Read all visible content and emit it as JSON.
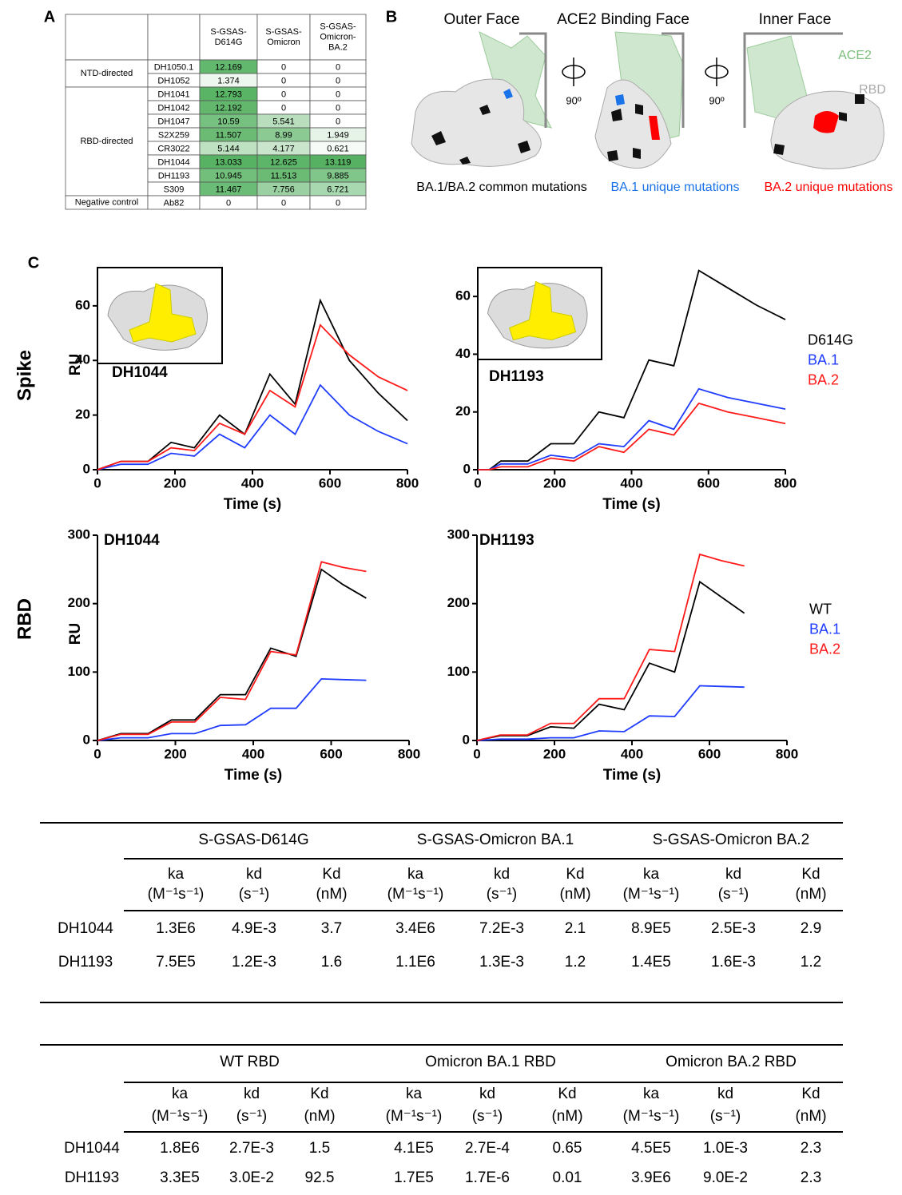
{
  "panel_labels": [
    "A",
    "B",
    "C"
  ],
  "table_a": {
    "columns": [
      [
        "S-GSAS-",
        "D614G"
      ],
      [
        "S-GSAS-",
        "Omicron"
      ],
      [
        "S-GSAS-",
        "Omicron-",
        "BA.2"
      ]
    ],
    "groups": [
      {
        "label": "NTD-directed",
        "rows": [
          {
            "antibody": "DH1050.1",
            "values": [
              12.169,
              0,
              0
            ]
          },
          {
            "antibody": "DH1052",
            "values": [
              1.374,
              0,
              0
            ]
          }
        ]
      },
      {
        "label": "RBD-directed",
        "rows": [
          {
            "antibody": "DH1041",
            "values": [
              12.793,
              0,
              0
            ]
          },
          {
            "antibody": "DH1042",
            "values": [
              12.192,
              0,
              0
            ]
          },
          {
            "antibody": "DH1047",
            "values": [
              10.59,
              5.541,
              0
            ]
          },
          {
            "antibody": "S2X259",
            "values": [
              11.507,
              8.99,
              1.949
            ]
          },
          {
            "antibody": "CR3022",
            "values": [
              5.144,
              4.177,
              0.621
            ]
          },
          {
            "antibody": "DH1044",
            "values": [
              13.033,
              12.625,
              13.119
            ]
          },
          {
            "antibody": "DH1193",
            "values": [
              10.945,
              11.513,
              9.885
            ]
          },
          {
            "antibody": "S309",
            "values": [
              11.467,
              7.756,
              6.721
            ]
          }
        ]
      },
      {
        "label": "Negative control",
        "rows": [
          {
            "antibody": "Ab82",
            "values": [
              0,
              0,
              0
            ]
          }
        ]
      }
    ]
  },
  "structures": {
    "views": [
      "Outer Face",
      "ACE2 Binding Face",
      "Inner Face"
    ],
    "rotations": [
      "90º",
      "90º"
    ],
    "chain_labels": [
      {
        "text": "ACE2",
        "color": "#7cbf7c"
      },
      {
        "text": "RBD",
        "color": "#aaaaaa"
      }
    ],
    "legend": [
      {
        "text": "BA.1/BA.2 common mutations",
        "color": "#000000"
      },
      {
        "text": "BA.1 unique mutations",
        "color": "#1a73e8"
      },
      {
        "text": "BA.2 unique mutations",
        "color": "#ff0000"
      }
    ]
  },
  "row_labels": [
    "Spike",
    "RBD"
  ],
  "chart_data": [
    {
      "type": "line",
      "annotation": "DH1044",
      "x_label": "Time (s)",
      "y_label": "RU",
      "x": [
        0,
        60,
        130,
        190,
        250,
        315,
        380,
        445,
        510,
        575,
        650,
        725,
        800
      ],
      "xlim": [
        0,
        800
      ],
      "xticks": [
        0,
        200,
        400,
        600,
        800
      ],
      "ylim": [
        0,
        74
      ],
      "yticks": [
        0,
        20,
        40,
        60
      ],
      "series": [
        {
          "color": "#000000",
          "values": [
            0,
            3,
            3,
            10,
            8,
            20,
            13,
            35,
            24,
            62,
            40,
            28,
            18
          ]
        },
        {
          "color": "#1f3cff",
          "values": [
            0,
            2,
            2,
            6,
            5,
            13,
            8,
            20,
            13,
            31,
            20,
            14,
            9.5
          ]
        },
        {
          "color": "#ff1a1a",
          "values": [
            0,
            3,
            3,
            8,
            7,
            17,
            13,
            29,
            23,
            53,
            42,
            34,
            29
          ]
        }
      ]
    },
    {
      "type": "line",
      "annotation": "DH1193",
      "x_label": "Time (s)",
      "x": [
        0,
        30,
        60,
        130,
        190,
        250,
        315,
        380,
        445,
        510,
        575,
        650,
        725,
        800
      ],
      "xlim": [
        0,
        800
      ],
      "xticks": [
        0,
        200,
        400,
        600,
        800
      ],
      "ylim": [
        0,
        70
      ],
      "yticks": [
        0,
        20,
        40,
        60
      ],
      "series": [
        {
          "name": "D614G",
          "color": "#000000",
          "values": [
            0,
            0,
            3,
            3,
            9,
            9,
            20,
            18,
            38,
            36,
            69,
            63,
            57,
            52
          ]
        },
        {
          "name": "BA.1",
          "color": "#1f3cff",
          "values": [
            0,
            0,
            2,
            2,
            5,
            4,
            9,
            8,
            17,
            14,
            28,
            25,
            23,
            21
          ]
        },
        {
          "name": "BA.2",
          "color": "#ff1a1a",
          "values": [
            0,
            0,
            1,
            1,
            4,
            3,
            8,
            6,
            14,
            12,
            23,
            20,
            18,
            16
          ]
        }
      ]
    },
    {
      "type": "line",
      "annotation": "DH1044",
      "x_label": "Time (s)",
      "y_label": "RU",
      "x": [
        0,
        60,
        130,
        190,
        250,
        315,
        380,
        445,
        510,
        575,
        630,
        690
      ],
      "xlim": [
        0,
        800
      ],
      "xticks": [
        0,
        200,
        400,
        600,
        800
      ],
      "ylim": [
        0,
        300
      ],
      "yticks": [
        0,
        100,
        200,
        300
      ],
      "series": [
        {
          "color": "#000000",
          "values": [
            0,
            10,
            10,
            30,
            30,
            67,
            67,
            135,
            123,
            250,
            228,
            208
          ]
        },
        {
          "color": "#1f3cff",
          "values": [
            0,
            4,
            4,
            10,
            10,
            22,
            23,
            47,
            47,
            90,
            89,
            88
          ]
        },
        {
          "color": "#ff1a1a",
          "values": [
            0,
            9,
            9,
            27,
            27,
            63,
            60,
            130,
            125,
            261,
            253,
            247
          ]
        }
      ]
    },
    {
      "type": "line",
      "annotation": "DH1193",
      "x_label": "Time (s)",
      "x": [
        0,
        60,
        130,
        190,
        250,
        315,
        380,
        445,
        510,
        575,
        630,
        690
      ],
      "xlim": [
        0,
        800
      ],
      "xticks": [
        0,
        200,
        400,
        600,
        800
      ],
      "ylim": [
        0,
        300
      ],
      "yticks": [
        0,
        100,
        200,
        300
      ],
      "series": [
        {
          "name": "WT",
          "color": "#000000",
          "values": [
            0,
            7,
            7,
            20,
            18,
            53,
            45,
            113,
            100,
            232,
            210,
            186
          ]
        },
        {
          "name": "BA.1",
          "color": "#1f3cff",
          "values": [
            0,
            2,
            2,
            4,
            4,
            14,
            13,
            36,
            35,
            80,
            79,
            78
          ]
        },
        {
          "name": "BA.2",
          "color": "#ff1a1a",
          "values": [
            0,
            8,
            8,
            25,
            25,
            61,
            61,
            133,
            130,
            272,
            263,
            255
          ]
        }
      ]
    }
  ],
  "kinetics_tables": [
    {
      "groups": [
        "S-GSAS-D614G",
        "S-GSAS-Omicron BA.1",
        "S-GSAS-Omicron BA.2"
      ],
      "subheaders": [
        {
          "name": "ka",
          "unit": "(M⁻¹s⁻¹)"
        },
        {
          "name": "kd",
          "unit": "(s⁻¹)"
        },
        {
          "name": "Kd",
          "unit": "(nM)"
        }
      ],
      "rows": [
        {
          "name": "DH1044",
          "values": [
            "1.3E6",
            "4.9E-3",
            "3.7",
            "3.4E6",
            "7.2E-3",
            "2.1",
            "8.9E5",
            "2.5E-3",
            "2.9"
          ]
        },
        {
          "name": "DH1193",
          "values": [
            "7.5E5",
            "1.2E-3",
            "1.6",
            "1.1E6",
            "1.3E-3",
            "1.2",
            "1.4E5",
            "1.6E-3",
            "1.2"
          ]
        }
      ]
    },
    {
      "groups": [
        "WT RBD",
        "Omicron BA.1 RBD",
        "Omicron BA.2 RBD"
      ],
      "subheaders": [
        {
          "name": "ka",
          "unit": "(M⁻¹s⁻¹)"
        },
        {
          "name": "kd",
          "unit": "(s⁻¹)"
        },
        {
          "name": "Kd",
          "unit": "(nM)"
        }
      ],
      "rows": [
        {
          "name": "DH1044",
          "values": [
            "1.8E6",
            "2.7E-3",
            "1.5",
            "4.1E5",
            "2.7E-4",
            "0.65",
            "4.5E5",
            "1.0E-3",
            "2.3"
          ]
        },
        {
          "name": "DH1193",
          "values": [
            "3.3E5",
            "3.0E-2",
            "92.5",
            "1.7E5",
            "1.7E-6",
            "0.01",
            "3.9E6",
            "9.0E-2",
            "2.3"
          ]
        }
      ]
    }
  ]
}
